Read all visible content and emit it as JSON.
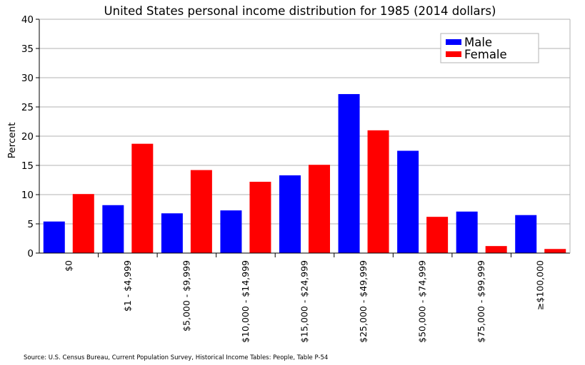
{
  "chart_data": {
    "type": "bar",
    "title": "United States personal income distribution for 1985 (2014 dollars)",
    "ylabel": "Percent",
    "xlabel": "",
    "ylim": [
      0,
      40
    ],
    "yticks": [
      0,
      5,
      10,
      15,
      20,
      25,
      30,
      35,
      40
    ],
    "grid": true,
    "legend_position": "top-right",
    "categories": [
      "$0",
      "$1 - $4,999",
      "$5,000 - $9,999",
      "$10,000 - $14,999",
      "$15,000 - $24,999",
      "$25,000 - $49,999",
      "$50,000 - $74,999",
      "$75,000 - $99,999",
      "≥$100,000"
    ],
    "series": [
      {
        "name": "Male",
        "color": "#0000ff",
        "values": [
          5.4,
          8.2,
          6.8,
          7.3,
          13.3,
          27.2,
          17.5,
          7.1,
          6.5
        ]
      },
      {
        "name": "Female",
        "color": "#ff0000",
        "values": [
          10.1,
          18.7,
          14.2,
          12.2,
          15.1,
          21.0,
          6.2,
          1.2,
          0.7
        ]
      }
    ]
  },
  "source": "Source: U.S. Census Bureau, Current Population Survey, Historical Income Tables: People, Table P-54"
}
